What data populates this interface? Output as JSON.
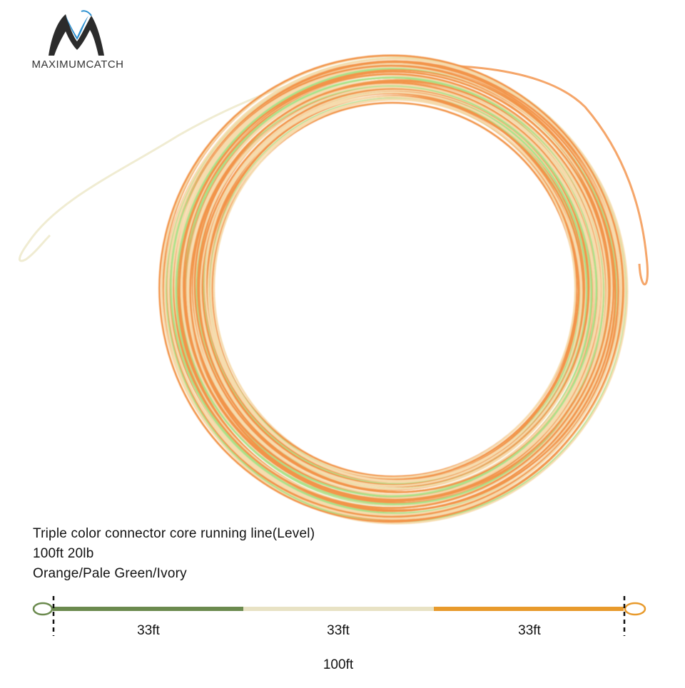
{
  "brand": {
    "name": "MAXIMUMCATCH",
    "logo_icon": "maximumcatch-m-logo-icon"
  },
  "product_image": {
    "icon": "fly-line-coil-icon",
    "colors": {
      "orange": "#f2944a",
      "pale_green": "#a8e28a",
      "ivory": "#f6dcae"
    }
  },
  "info": {
    "title": "Triple color connector core running line(Level)",
    "specs": "100ft  20lb",
    "colors": "Orange/Pale Green/Ivory"
  },
  "diagram": {
    "segments": [
      {
        "label": "33ft",
        "color": "#6b8a4e"
      },
      {
        "label": "33ft",
        "color": "#e8e2c4"
      },
      {
        "label": "33ft",
        "color": "#e89a2c"
      }
    ],
    "loop_colors": {
      "left": "#6b8a4e",
      "right": "#e89a2c"
    },
    "total_label": "100ft"
  }
}
